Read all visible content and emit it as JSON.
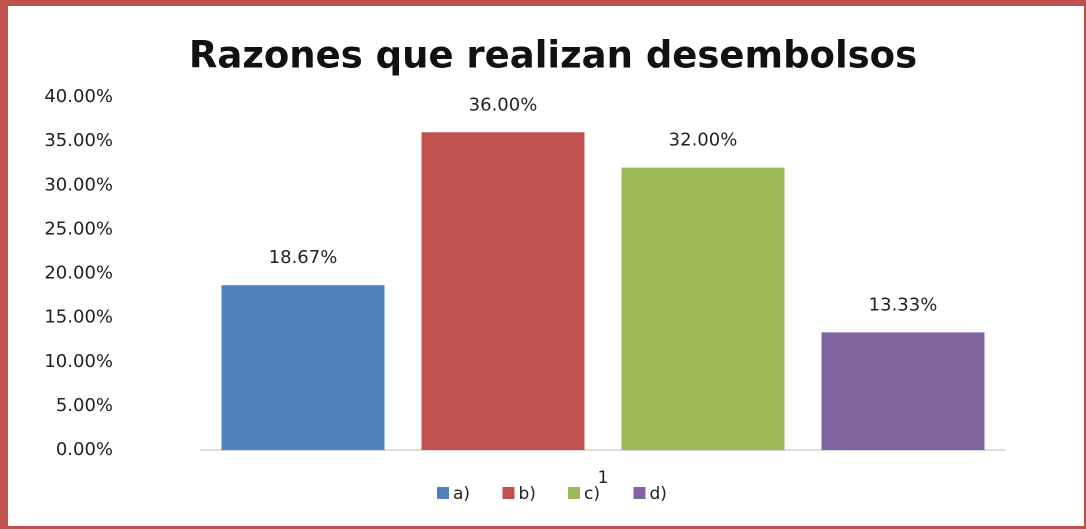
{
  "chart_data": {
    "type": "bar",
    "title": "Razones que realizan desembolsos",
    "categories": [
      "1"
    ],
    "series": [
      {
        "name": "a)",
        "color": "#4f81bd",
        "values": [
          18.67
        ],
        "value_labels": [
          "18.67%"
        ]
      },
      {
        "name": "b)",
        "color": "#c0504d",
        "values": [
          36
        ],
        "value_labels": [
          "36.00%"
        ]
      },
      {
        "name": "c)",
        "color": "#9bbb59",
        "values": [
          32
        ],
        "value_labels": [
          "32.00%"
        ]
      },
      {
        "name": "d)",
        "color": "#8064a2",
        "values": [
          13.33
        ],
        "value_labels": [
          "13.33%"
        ]
      }
    ],
    "ylim": [
      0,
      40
    ],
    "yticks": [
      {
        "value": 0,
        "label": "0.00%"
      },
      {
        "value": 5,
        "label": "5.00%"
      },
      {
        "value": 10,
        "label": "10.00%"
      },
      {
        "value": 15,
        "label": "15.00%"
      },
      {
        "value": 20,
        "label": "20.00%"
      },
      {
        "value": 25,
        "label": "25.00%"
      },
      {
        "value": 30,
        "label": "30.00%"
      },
      {
        "value": 35,
        "label": "35.00%"
      },
      {
        "value": 40,
        "label": "40.00%"
      }
    ],
    "grid": false,
    "legend": "bottom"
  }
}
